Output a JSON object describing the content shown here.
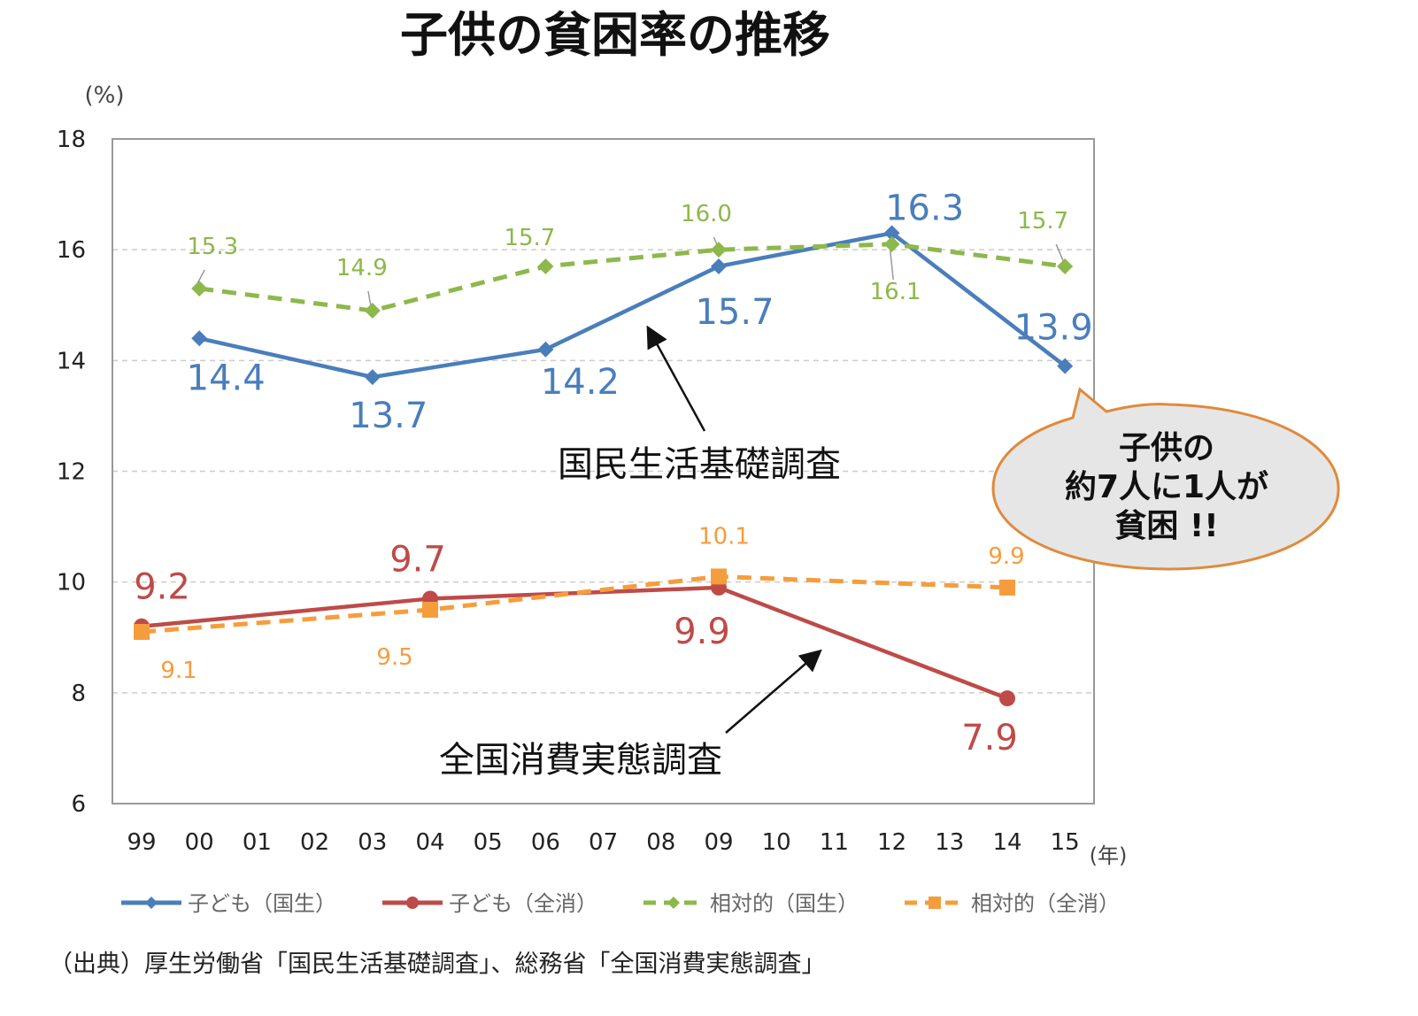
{
  "chart_data": {
    "type": "line",
    "title": "子供の貧困率の推移",
    "ylabel": "(%)",
    "xlabel": "(年)",
    "ylim": [
      6,
      18
    ],
    "yticks": [
      6,
      8,
      10,
      12,
      14,
      16,
      18
    ],
    "categories": [
      "99",
      "00",
      "01",
      "02",
      "03",
      "04",
      "05",
      "06",
      "07",
      "08",
      "09",
      "10",
      "11",
      "12",
      "13",
      "14",
      "15"
    ],
    "grid": true,
    "legend_position": "bottom",
    "series": [
      {
        "name": "子ども（国生）",
        "color": "#4a7ebb",
        "style": "solid",
        "marker": "diamond",
        "points": [
          {
            "x": "00",
            "y": 14.4
          },
          {
            "x": "03",
            "y": 13.7
          },
          {
            "x": "06",
            "y": 14.2
          },
          {
            "x": "09",
            "y": 15.7
          },
          {
            "x": "12",
            "y": 16.3
          },
          {
            "x": "15",
            "y": 13.9
          }
        ]
      },
      {
        "name": "子ども（全消）",
        "color": "#be4b48",
        "style": "solid",
        "marker": "circle",
        "points": [
          {
            "x": "99",
            "y": 9.2
          },
          {
            "x": "04",
            "y": 9.7
          },
          {
            "x": "09",
            "y": 9.9
          },
          {
            "x": "14",
            "y": 7.9
          }
        ]
      },
      {
        "name": "相対的（国生）",
        "color": "#8db84a",
        "style": "dashed",
        "marker": "diamond",
        "points": [
          {
            "x": "00",
            "y": 15.3
          },
          {
            "x": "03",
            "y": 14.9
          },
          {
            "x": "06",
            "y": 15.7
          },
          {
            "x": "09",
            "y": 16.0
          },
          {
            "x": "12",
            "y": 16.1
          },
          {
            "x": "15",
            "y": 15.7
          }
        ]
      },
      {
        "name": "相対的（全消）",
        "color": "#f59d3d",
        "style": "dashed",
        "marker": "square",
        "points": [
          {
            "x": "99",
            "y": 9.1
          },
          {
            "x": "04",
            "y": 9.5
          },
          {
            "x": "09",
            "y": 10.1
          },
          {
            "x": "14",
            "y": 9.9
          }
        ]
      }
    ],
    "annotations": {
      "survey_kokumin": "国民生活基礎調査",
      "survey_zenkoku": "全国消費実態調査",
      "callout_lines": [
        "子供の",
        "約7人に1人が",
        "貧困 !!"
      ]
    },
    "source": "（出典）厚生労働省「国民生活基礎調査」、総務省「全国消費実態調査」"
  }
}
